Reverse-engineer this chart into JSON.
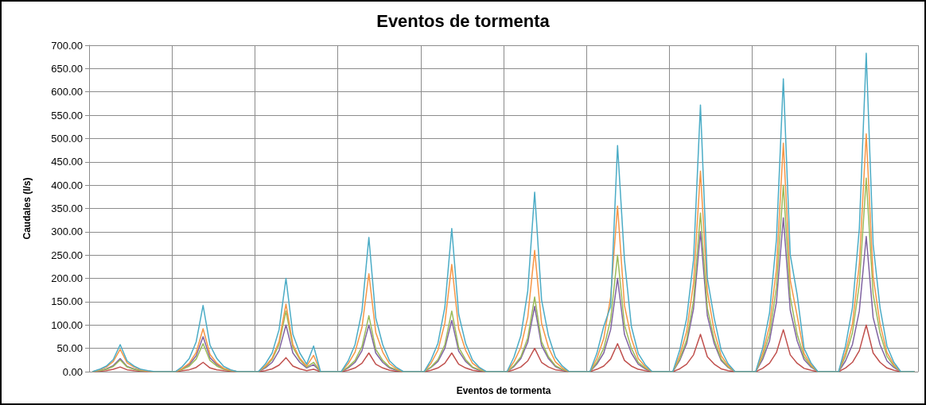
{
  "chart_data": {
    "type": "line",
    "title": "Eventos de tormenta",
    "xlabel": "Eventos de tormenta",
    "ylabel": "Caudales (l/s)",
    "categories": [
      null,
      null,
      null,
      null,
      null,
      null,
      null,
      null,
      null,
      null,
      null,
      null,
      null,
      null,
      null,
      null,
      null,
      null,
      null,
      null,
      null,
      null,
      null,
      null,
      null,
      null,
      null,
      null,
      null,
      null,
      null,
      null,
      null,
      null,
      null,
      null,
      null,
      null,
      null,
      null,
      null,
      null,
      null,
      null,
      null,
      null,
      null,
      null,
      null,
      null,
      null,
      null,
      null,
      null,
      null,
      null,
      null,
      null,
      null,
      null,
      null,
      null,
      null,
      null,
      null,
      null,
      null,
      null,
      null,
      null,
      null,
      null,
      null,
      null,
      null,
      null,
      null,
      null,
      null,
      null,
      null,
      null,
      null,
      null,
      null,
      null,
      null,
      null,
      null,
      null,
      null,
      null,
      null,
      null,
      null,
      null,
      null,
      null,
      null,
      null,
      null,
      null,
      null,
      null,
      null,
      null,
      null,
      null,
      null,
      null,
      null,
      null,
      null,
      null,
      null,
      null,
      null,
      null,
      null,
      null
    ],
    "ylim": [
      0,
      700
    ],
    "yticks": [
      {
        "value": 0,
        "label": "0.00"
      },
      {
        "value": 50,
        "label": "50.00"
      },
      {
        "value": 100,
        "label": "100.00"
      },
      {
        "value": 150,
        "label": "150.00"
      },
      {
        "value": 200,
        "label": "200.00"
      },
      {
        "value": 250,
        "label": "250.00"
      },
      {
        "value": 300,
        "label": "300.00"
      },
      {
        "value": 350,
        "label": "350.00"
      },
      {
        "value": 400,
        "label": "400.00"
      },
      {
        "value": 450,
        "label": "450.00"
      },
      {
        "value": 500,
        "label": "500.00"
      },
      {
        "value": 550,
        "label": "550.00"
      },
      {
        "value": 600,
        "label": "600.00"
      },
      {
        "value": 650,
        "label": "650.00"
      },
      {
        "value": 700,
        "label": "700.00"
      }
    ],
    "grid": true,
    "marker": "none",
    "line_style": "solid",
    "tick_labels": "y",
    "series": [
      {
        "color": "#c0504d",
        "values": [
          0,
          1,
          2,
          5,
          10,
          4,
          2,
          1,
          0,
          0,
          0,
          0,
          0,
          2,
          4,
          9,
          20,
          8,
          4,
          2,
          1,
          0,
          0,
          0,
          0,
          2,
          6,
          14,
          30,
          12,
          6,
          2,
          5,
          0,
          0,
          0,
          0,
          3,
          8,
          18,
          40,
          16,
          8,
          3,
          1,
          0,
          0,
          0,
          0,
          3,
          8,
          18,
          40,
          16,
          8,
          3,
          1,
          0,
          0,
          0,
          0,
          4,
          10,
          23,
          50,
          20,
          10,
          4,
          2,
          0,
          0,
          0,
          0,
          5,
          12,
          27,
          60,
          24,
          12,
          5,
          2,
          0,
          0,
          0,
          0,
          6,
          16,
          36,
          80,
          32,
          16,
          6,
          2,
          0,
          0,
          0,
          0,
          7,
          18,
          41,
          90,
          36,
          18,
          7,
          3,
          0,
          0,
          0,
          0,
          8,
          20,
          45,
          100,
          40,
          20,
          8,
          3,
          0,
          0,
          0
        ]
      },
      {
        "color": "#8064a2",
        "values": [
          0,
          2,
          6,
          13,
          28,
          11,
          6,
          2,
          1,
          0,
          0,
          0,
          0,
          6,
          15,
          34,
          75,
          30,
          15,
          6,
          2,
          0,
          0,
          0,
          0,
          8,
          20,
          45,
          100,
          40,
          20,
          8,
          15,
          0,
          0,
          0,
          0,
          8,
          20,
          45,
          100,
          40,
          20,
          8,
          3,
          0,
          0,
          0,
          0,
          9,
          22,
          50,
          110,
          44,
          22,
          9,
          3,
          0,
          0,
          0,
          0,
          11,
          28,
          63,
          140,
          56,
          28,
          11,
          4,
          0,
          0,
          0,
          0,
          16,
          40,
          90,
          200,
          80,
          40,
          16,
          6,
          0,
          0,
          0,
          0,
          24,
          60,
          135,
          300,
          120,
          60,
          24,
          9,
          0,
          0,
          0,
          0,
          26,
          66,
          149,
          330,
          132,
          66,
          26,
          10,
          0,
          0,
          0,
          0,
          23,
          58,
          130,
          290,
          116,
          58,
          23,
          9,
          0,
          0,
          0
        ]
      },
      {
        "color": "#9bbb59",
        "values": [
          0,
          2,
          5,
          11,
          25,
          10,
          5,
          2,
          1,
          0,
          0,
          0,
          0,
          5,
          12,
          27,
          60,
          24,
          12,
          5,
          2,
          0,
          0,
          0,
          0,
          10,
          26,
          58,
          130,
          52,
          26,
          10,
          20,
          0,
          0,
          0,
          0,
          10,
          24,
          54,
          120,
          48,
          24,
          10,
          4,
          0,
          0,
          0,
          0,
          10,
          26,
          58,
          130,
          52,
          26,
          10,
          4,
          0,
          0,
          0,
          0,
          13,
          32,
          72,
          160,
          64,
          32,
          13,
          5,
          0,
          0,
          0,
          0,
          20,
          50,
          112,
          250,
          100,
          50,
          20,
          8,
          0,
          0,
          0,
          0,
          27,
          68,
          153,
          340,
          136,
          68,
          27,
          10,
          0,
          0,
          0,
          0,
          32,
          80,
          180,
          400,
          160,
          80,
          32,
          12,
          0,
          0,
          0,
          0,
          33,
          83,
          187,
          415,
          166,
          83,
          33,
          12,
          0,
          0,
          0
        ]
      },
      {
        "color": "#f79646",
        "values": [
          0,
          4,
          10,
          22,
          48,
          19,
          10,
          4,
          1,
          0,
          0,
          0,
          0,
          7,
          18,
          41,
          92,
          37,
          18,
          7,
          3,
          0,
          0,
          0,
          0,
          12,
          29,
          65,
          145,
          58,
          29,
          12,
          35,
          0,
          0,
          0,
          0,
          17,
          42,
          95,
          210,
          84,
          42,
          17,
          6,
          0,
          0,
          0,
          0,
          18,
          46,
          104,
          230,
          92,
          46,
          18,
          7,
          0,
          0,
          0,
          0,
          21,
          52,
          117,
          260,
          104,
          52,
          21,
          8,
          0,
          0,
          0,
          0,
          28,
          71,
          160,
          355,
          142,
          71,
          28,
          11,
          0,
          0,
          0,
          0,
          34,
          86,
          190,
          430,
          172,
          86,
          34,
          13,
          0,
          0,
          0,
          0,
          39,
          98,
          220,
          490,
          196,
          120,
          39,
          15,
          0,
          0,
          0,
          0,
          41,
          102,
          230,
          510,
          204,
          102,
          41,
          15,
          0,
          0,
          0
        ]
      },
      {
        "color": "#4bacc6",
        "values": [
          0,
          5,
          12,
          26,
          58,
          23,
          12,
          5,
          2,
          0,
          0,
          0,
          0,
          11,
          28,
          64,
          142,
          57,
          28,
          11,
          4,
          0,
          0,
          0,
          0,
          16,
          40,
          90,
          200,
          80,
          40,
          16,
          55,
          0,
          0,
          0,
          0,
          23,
          58,
          130,
          288,
          115,
          58,
          23,
          9,
          0,
          0,
          0,
          0,
          25,
          61,
          138,
          307,
          123,
          61,
          25,
          9,
          0,
          0,
          0,
          0,
          31,
          77,
          173,
          385,
          154,
          77,
          31,
          12,
          0,
          0,
          0,
          0,
          39,
          97,
          140,
          485,
          240,
          97,
          39,
          15,
          0,
          0,
          0,
          0,
          46,
          114,
          240,
          572,
          200,
          114,
          46,
          17,
          0,
          0,
          0,
          0,
          50,
          126,
          283,
          628,
          251,
          165,
          50,
          19,
          0,
          0,
          0,
          0,
          55,
          137,
          307,
          683,
          273,
          137,
          55,
          20,
          0,
          0,
          0
        ]
      }
    ]
  }
}
